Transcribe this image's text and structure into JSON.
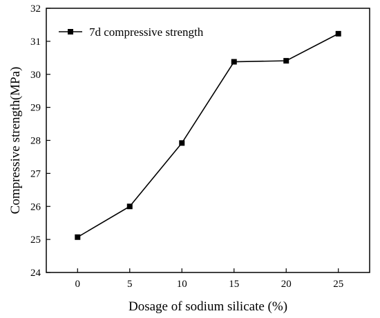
{
  "chart_data": {
    "type": "line",
    "title": "",
    "xlabel": "Dosage of sodium silicate (%)",
    "ylabel": "Compressive strength(MPa)",
    "xlim": [
      -3,
      28
    ],
    "ylim": [
      24,
      32
    ],
    "xticks": [
      0,
      5,
      10,
      15,
      20,
      25
    ],
    "yticks": [
      24,
      25,
      26,
      27,
      28,
      29,
      30,
      31,
      32
    ],
    "x": [
      0,
      5,
      10,
      15,
      20,
      25
    ],
    "series": [
      {
        "name": "7d compressive strength",
        "values": [
          25.07,
          26.0,
          27.92,
          30.38,
          30.41,
          31.23
        ],
        "marker": "square",
        "color": "#000000"
      }
    ],
    "grid": false,
    "legend": "top-left"
  }
}
